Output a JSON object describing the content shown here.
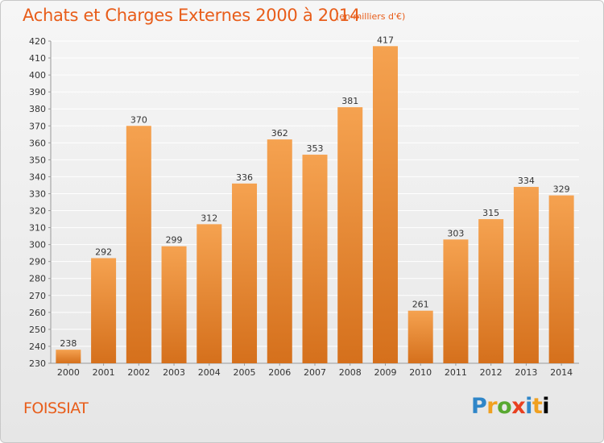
{
  "header": {
    "title": "Achats et Charges Externes 2000 à 2014",
    "subtitle": "(en milliers d'€)"
  },
  "footer": {
    "place": "FOISSIAT",
    "logo_text": "Proxiti"
  },
  "colors": {
    "accent": "#e85d1a",
    "bar_top": "#f5a250",
    "bar_bottom": "#d5701c",
    "grid": "#ffffff"
  },
  "chart_data": {
    "type": "bar",
    "title": "Achats et Charges Externes 2000 à 2014",
    "subtitle": "(en milliers d'€)",
    "xlabel": "",
    "ylabel": "",
    "categories": [
      "2000",
      "2001",
      "2002",
      "2003",
      "2004",
      "2005",
      "2006",
      "2007",
      "2008",
      "2009",
      "2010",
      "2011",
      "2012",
      "2013",
      "2014"
    ],
    "values": [
      238,
      292,
      370,
      299,
      312,
      336,
      362,
      353,
      381,
      417,
      261,
      303,
      315,
      334,
      329
    ],
    "data_labels": [
      "238",
      "292",
      "370",
      "299",
      "312",
      "336",
      "362",
      "353",
      "381",
      "417",
      "261",
      "303",
      "315",
      "334",
      "329"
    ],
    "ylim": [
      230,
      420
    ],
    "yticks": [
      230,
      240,
      250,
      260,
      270,
      280,
      290,
      300,
      310,
      320,
      330,
      340,
      350,
      360,
      370,
      380,
      390,
      400,
      410,
      420
    ],
    "grid": true,
    "legend": "none"
  }
}
